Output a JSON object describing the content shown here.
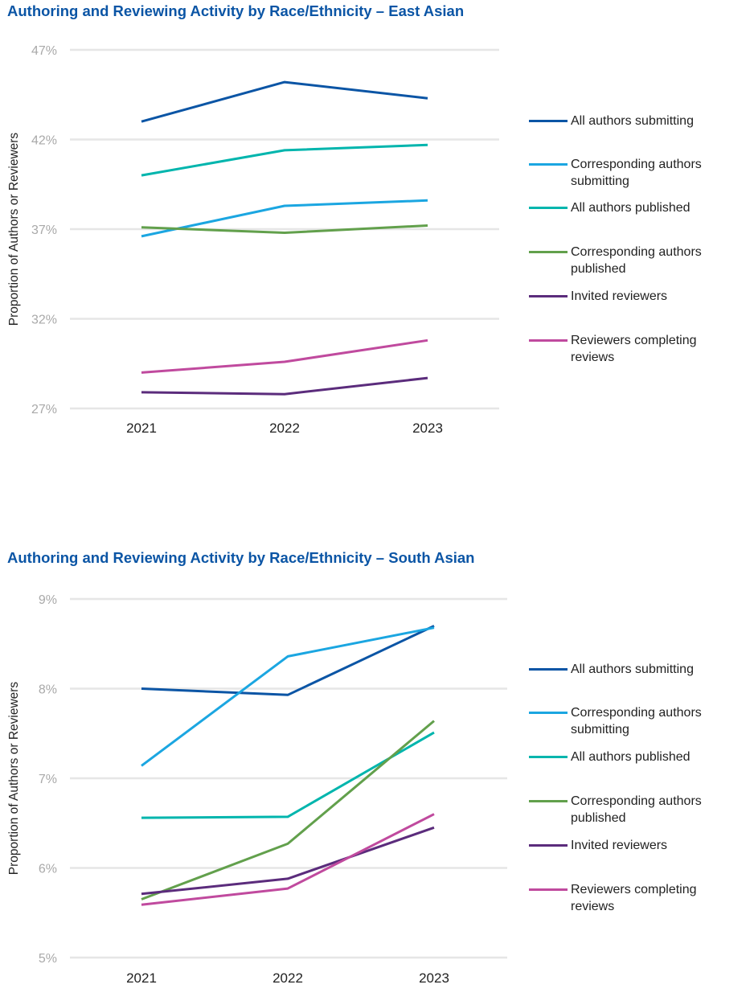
{
  "chart_data": [
    {
      "type": "line",
      "title": "Authoring and Reviewing Activity by Race/Ethnicity – East Asian",
      "xlabel": "",
      "ylabel": "Proportion of Authors or Reviewers",
      "categories": [
        "2021",
        "2022",
        "2023"
      ],
      "ylim": [
        27,
        47
      ],
      "yticks": [
        "47%",
        "42%",
        "37%",
        "32%",
        "27%"
      ],
      "ytick_values": [
        47,
        42,
        37,
        32,
        27
      ],
      "grid": true,
      "legend": "right",
      "series": [
        {
          "name": "All authors submitting",
          "color": "#0b55a5",
          "values": [
            43.0,
            45.2,
            44.3
          ]
        },
        {
          "name": "Corresponding authors submitting",
          "color": "#1ba6e1",
          "values": [
            36.6,
            38.3,
            38.6
          ]
        },
        {
          "name": "All authors published",
          "color": "#00b5ad",
          "values": [
            40.0,
            41.4,
            41.7
          ]
        },
        {
          "name": "Corresponding authors published",
          "color": "#62a04c",
          "values": [
            37.1,
            36.8,
            37.2
          ]
        },
        {
          "name": "Invited reviewers",
          "color": "#5b2c7c",
          "values": [
            27.9,
            27.8,
            28.7
          ]
        },
        {
          "name": "Reviewers completing reviews",
          "color": "#c04a9e",
          "values": [
            29.0,
            29.6,
            30.8
          ]
        }
      ]
    },
    {
      "type": "line",
      "title": "Authoring and Reviewing Activity by Race/Ethnicity – South Asian",
      "xlabel": "",
      "ylabel": "Proportion of Authors or Reviewers",
      "categories": [
        "2021",
        "2022",
        "2023"
      ],
      "ylim": [
        5,
        9
      ],
      "yticks": [
        "9%",
        "8%",
        "7%",
        "6%",
        "5%"
      ],
      "ytick_values": [
        9,
        8,
        7,
        6,
        5
      ],
      "grid": true,
      "legend": "right",
      "series": [
        {
          "name": "All authors submitting",
          "color": "#0b55a5",
          "values": [
            8.0,
            7.93,
            8.7
          ]
        },
        {
          "name": "Corresponding authors submitting",
          "color": "#1ba6e1",
          "values": [
            7.14,
            8.36,
            8.68
          ]
        },
        {
          "name": "All authors published",
          "color": "#00b5ad",
          "values": [
            6.56,
            6.57,
            7.51
          ]
        },
        {
          "name": "Corresponding authors published",
          "color": "#62a04c",
          "values": [
            5.65,
            6.27,
            7.64
          ]
        },
        {
          "name": "Invited reviewers",
          "color": "#5b2c7c",
          "values": [
            5.71,
            5.88,
            6.45
          ]
        },
        {
          "name": "Reviewers completing reviews",
          "color": "#c04a9e",
          "values": [
            5.59,
            5.77,
            6.6
          ]
        }
      ]
    }
  ]
}
